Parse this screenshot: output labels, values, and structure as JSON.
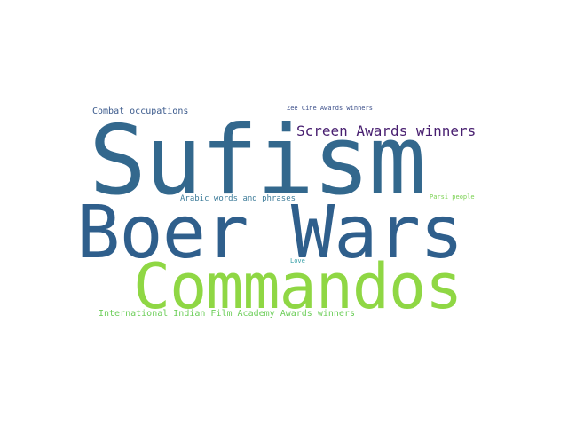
{
  "word_cloud": {
    "words": [
      {
        "text": "Sufism",
        "color": "#33688d"
      },
      {
        "text": "Boer Wars",
        "color": "#2f5f8c"
      },
      {
        "text": "Commandos",
        "color": "#8fd744"
      },
      {
        "text": "Screen Awards winners",
        "color": "#481f70"
      },
      {
        "text": "Combat occupations",
        "color": "#3b5a8c"
      },
      {
        "text": "Zee Cine Awards winners",
        "color": "#3c4f8a"
      },
      {
        "text": "Arabic words and phrases",
        "color": "#3f7d9a"
      },
      {
        "text": "Parsi people",
        "color": "#7ad151"
      },
      {
        "text": "Love",
        "color": "#39a0a8"
      },
      {
        "text": "International Indian Film Academy Awards winners",
        "color": "#6cce59"
      }
    ]
  }
}
